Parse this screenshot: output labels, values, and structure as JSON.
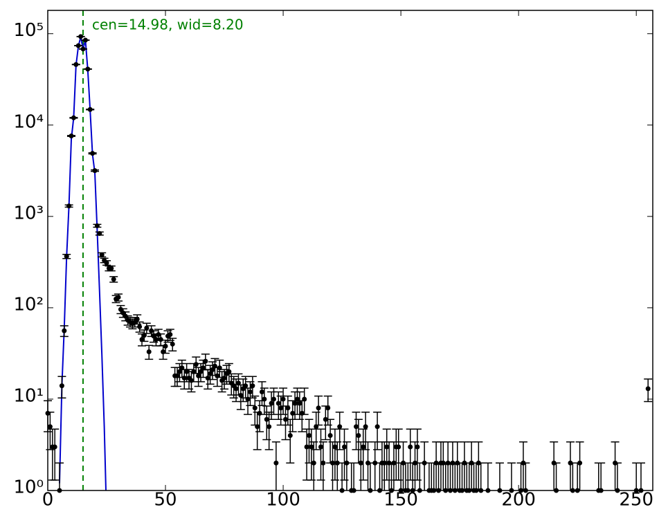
{
  "chart_data": {
    "type": "errorbar",
    "annotation": "cen=14.98, wid=8.20",
    "log_y": true,
    "xlim": [
      0,
      257
    ],
    "ylim": [
      1,
      180000
    ],
    "xticks": [
      0,
      50,
      100,
      150,
      200,
      250
    ],
    "yticks": [
      {
        "value": 1,
        "label": "10⁰"
      },
      {
        "value": 10,
        "label": "10¹"
      },
      {
        "value": 100,
        "label": "10²"
      },
      {
        "value": 1000,
        "label": "10³"
      },
      {
        "value": 10000,
        "label": "10⁴"
      },
      {
        "value": 100000,
        "label": "10⁵"
      }
    ],
    "color": "#000000",
    "x": [
      0,
      1,
      2,
      3,
      4,
      5,
      6,
      7,
      8,
      9,
      10,
      11,
      12,
      13,
      14,
      15,
      16,
      17,
      18,
      19,
      20,
      21,
      22,
      23,
      24,
      25,
      26,
      27,
      28,
      29,
      30,
      31,
      32,
      33,
      34,
      35,
      36,
      37,
      38,
      39,
      40,
      41,
      42,
      43,
      44,
      45,
      46,
      47,
      48,
      49,
      50,
      51,
      52,
      53,
      54,
      55,
      56,
      57,
      58,
      59,
      60,
      61,
      62,
      63,
      64,
      65,
      66,
      67,
      68,
      69,
      70,
      71,
      72,
      73,
      74,
      75,
      76,
      77,
      78,
      79,
      80,
      81,
      82,
      83,
      84,
      85,
      86,
      87,
      88,
      89,
      90,
      91,
      92,
      93,
      94,
      95,
      96,
      97,
      98,
      99,
      100,
      101,
      102,
      103,
      104,
      105,
      106,
      107,
      108,
      109,
      110,
      111,
      112,
      113,
      114,
      115,
      116,
      117,
      118,
      119,
      120,
      121,
      122,
      123,
      124,
      125,
      126,
      127,
      128,
      129,
      130,
      131,
      132,
      133,
      134,
      135,
      136,
      137,
      138,
      139,
      140,
      141,
      142,
      143,
      144,
      145,
      146,
      147,
      148,
      149,
      150,
      151,
      152,
      153,
      154,
      155,
      156,
      157,
      158,
      159,
      160,
      161,
      162,
      163,
      164,
      165,
      166,
      167,
      168,
      169,
      170,
      171,
      172,
      173,
      174,
      175,
      176,
      177,
      178,
      179,
      180,
      181,
      182,
      183,
      184,
      185,
      186,
      187,
      188,
      189,
      190,
      191,
      192,
      193,
      194,
      195,
      196,
      197,
      198,
      199,
      200,
      201,
      202,
      203,
      204,
      205,
      206,
      207,
      208,
      209,
      210,
      211,
      212,
      213,
      214,
      215,
      216,
      217,
      218,
      219,
      220,
      221,
      222,
      223,
      224,
      225,
      226,
      227,
      228,
      229,
      230,
      231,
      232,
      233,
      234,
      235,
      236,
      237,
      238,
      239,
      240,
      241,
      242,
      243,
      244,
      245,
      246,
      247,
      248,
      249,
      250,
      251,
      252,
      253,
      254,
      255
    ],
    "values": [
      7,
      5,
      3,
      3,
      null,
      1,
      14,
      56,
      365,
      1300,
      7600,
      12000,
      46000,
      74000,
      93000,
      68000,
      85000,
      41000,
      14800,
      4900,
      3170,
      790,
      650,
      380,
      330,
      310,
      270,
      270,
      205,
      125,
      130,
      96,
      88,
      81,
      73,
      70,
      67,
      70,
      75,
      62,
      45,
      50,
      60,
      33,
      56,
      49,
      45,
      51,
      45,
      33,
      38,
      49,
      51,
      40,
      18,
      18,
      20,
      22,
      17,
      20,
      17,
      16,
      20,
      24,
      18,
      20,
      22,
      26,
      17,
      19,
      21,
      23,
      18,
      22,
      16,
      17,
      19,
      20,
      15,
      14,
      13,
      15,
      11,
      13,
      14,
      10,
      12,
      14,
      8,
      5,
      7,
      12,
      10,
      6,
      5,
      9,
      10,
      2,
      9,
      8,
      10,
      6,
      8,
      4,
      7,
      9,
      10,
      9,
      7,
      10,
      3,
      4,
      3,
      2,
      5,
      8,
      3,
      2,
      6,
      8,
      4,
      2,
      3,
      2,
      5,
      1,
      3,
      2,
      null,
      1,
      1,
      5,
      4,
      2,
      3,
      5,
      2,
      1,
      null,
      2,
      5,
      1,
      2,
      2,
      3,
      2,
      1,
      2,
      3,
      3,
      1,
      2,
      1,
      1,
      3,
      1,
      2,
      3,
      1,
      null,
      2,
      null,
      1,
      1,
      1,
      2,
      1,
      2,
      2,
      1,
      2,
      1,
      2,
      1,
      2,
      1,
      1,
      2,
      1,
      1,
      2,
      1,
      1,
      2,
      1,
      null,
      null,
      1,
      null,
      null,
      null,
      null,
      1,
      null,
      null,
      null,
      null,
      1,
      null,
      null,
      null,
      1,
      2,
      1,
      null,
      null,
      null,
      null,
      null,
      null,
      null,
      null,
      null,
      null,
      null,
      2,
      1,
      null,
      null,
      null,
      null,
      null,
      2,
      1,
      null,
      1,
      2,
      null,
      null,
      null,
      null,
      null,
      null,
      null,
      1,
      1,
      null,
      null,
      null,
      null,
      null,
      2,
      1,
      null,
      null,
      null,
      null,
      null,
      null,
      null,
      1,
      null,
      1,
      null,
      null,
      13
    ],
    "errors": [
      2.6,
      2.2,
      1.7,
      1.7,
      null,
      1,
      3.7,
      7.5,
      19.1,
      36.1,
      87.2,
      109.5,
      214.5,
      272,
      305,
      260.8,
      291.5,
      202.5,
      121.7,
      70,
      56.3,
      28.1,
      25.5,
      19.5,
      18.2,
      17.6,
      16.4,
      16.4,
      14.3,
      11.2,
      11.4,
      9.8,
      9.4,
      9,
      8.5,
      8.4,
      8.2,
      8.4,
      8.7,
      7.9,
      6.7,
      7.1,
      7.7,
      5.7,
      7.5,
      7,
      6.7,
      7.1,
      6.7,
      5.7,
      6.2,
      7,
      7.1,
      6.3,
      4.2,
      4.2,
      4.5,
      4.7,
      4.1,
      4.5,
      4.1,
      4,
      4.5,
      4.9,
      4.2,
      4.5,
      4.7,
      5.1,
      4.1,
      4.4,
      4.6,
      4.8,
      4.2,
      4.7,
      4,
      4.1,
      4.4,
      4.5,
      3.9,
      3.7,
      3.6,
      3.9,
      3.3,
      3.6,
      3.7,
      3.2,
      3.5,
      3.7,
      2.8,
      2.2,
      2.6,
      3.5,
      3.2,
      2.4,
      2.2,
      3,
      3.2,
      1.4,
      3,
      2.8,
      3.2,
      2.4,
      2.8,
      2,
      2.6,
      3,
      3.2,
      3,
      2.6,
      3.2,
      1.7,
      2,
      1.7,
      1.4,
      2.2,
      2.8,
      1.7,
      1.4,
      2.4,
      2.8,
      2,
      1.4,
      1.7,
      1.4,
      2.2,
      1,
      1.7,
      1.4,
      null,
      1,
      1,
      2.2,
      2,
      1.4,
      1.7,
      2.2,
      1.4,
      1,
      null,
      1.4,
      2.2,
      1,
      1.4,
      1.4,
      1.7,
      1.4,
      1,
      1.4,
      1.7,
      1.7,
      1,
      1.4,
      1,
      1,
      1.7,
      1,
      1.4,
      1.7,
      1,
      null,
      1.4,
      null,
      1,
      1,
      1,
      1.4,
      1,
      1.4,
      1.4,
      1,
      1.4,
      1,
      1.4,
      1,
      1.4,
      1,
      1,
      1.4,
      1,
      1,
      1.4,
      1,
      1,
      1.4,
      1,
      null,
      null,
      1,
      null,
      null,
      null,
      null,
      1,
      null,
      null,
      null,
      null,
      1,
      null,
      null,
      null,
      1,
      1.4,
      1,
      null,
      null,
      null,
      null,
      null,
      null,
      null,
      null,
      null,
      null,
      null,
      1.4,
      1,
      null,
      null,
      null,
      null,
      null,
      1.4,
      1,
      null,
      1,
      1.4,
      null,
      null,
      null,
      null,
      null,
      null,
      null,
      1,
      1,
      null,
      null,
      null,
      null,
      null,
      1.4,
      1,
      null,
      null,
      null,
      null,
      null,
      null,
      null,
      1,
      null,
      1,
      null,
      null,
      3.6
    ],
    "fit": {
      "color": "#0000cc",
      "x": [
        5,
        6,
        7,
        8,
        9,
        10,
        11,
        12,
        13,
        14,
        15,
        16,
        17,
        18,
        19,
        20,
        21,
        22,
        23,
        24,
        24.7
      ],
      "values": [
        1.2,
        14,
        60,
        360,
        1300,
        7000,
        12000,
        45000,
        73000,
        92000,
        68000,
        85000,
        40000,
        14500,
        4800,
        3000,
        700,
        150,
        30,
        5,
        1
      ]
    },
    "center_line": {
      "value": 14.98,
      "color": "#008000"
    }
  }
}
